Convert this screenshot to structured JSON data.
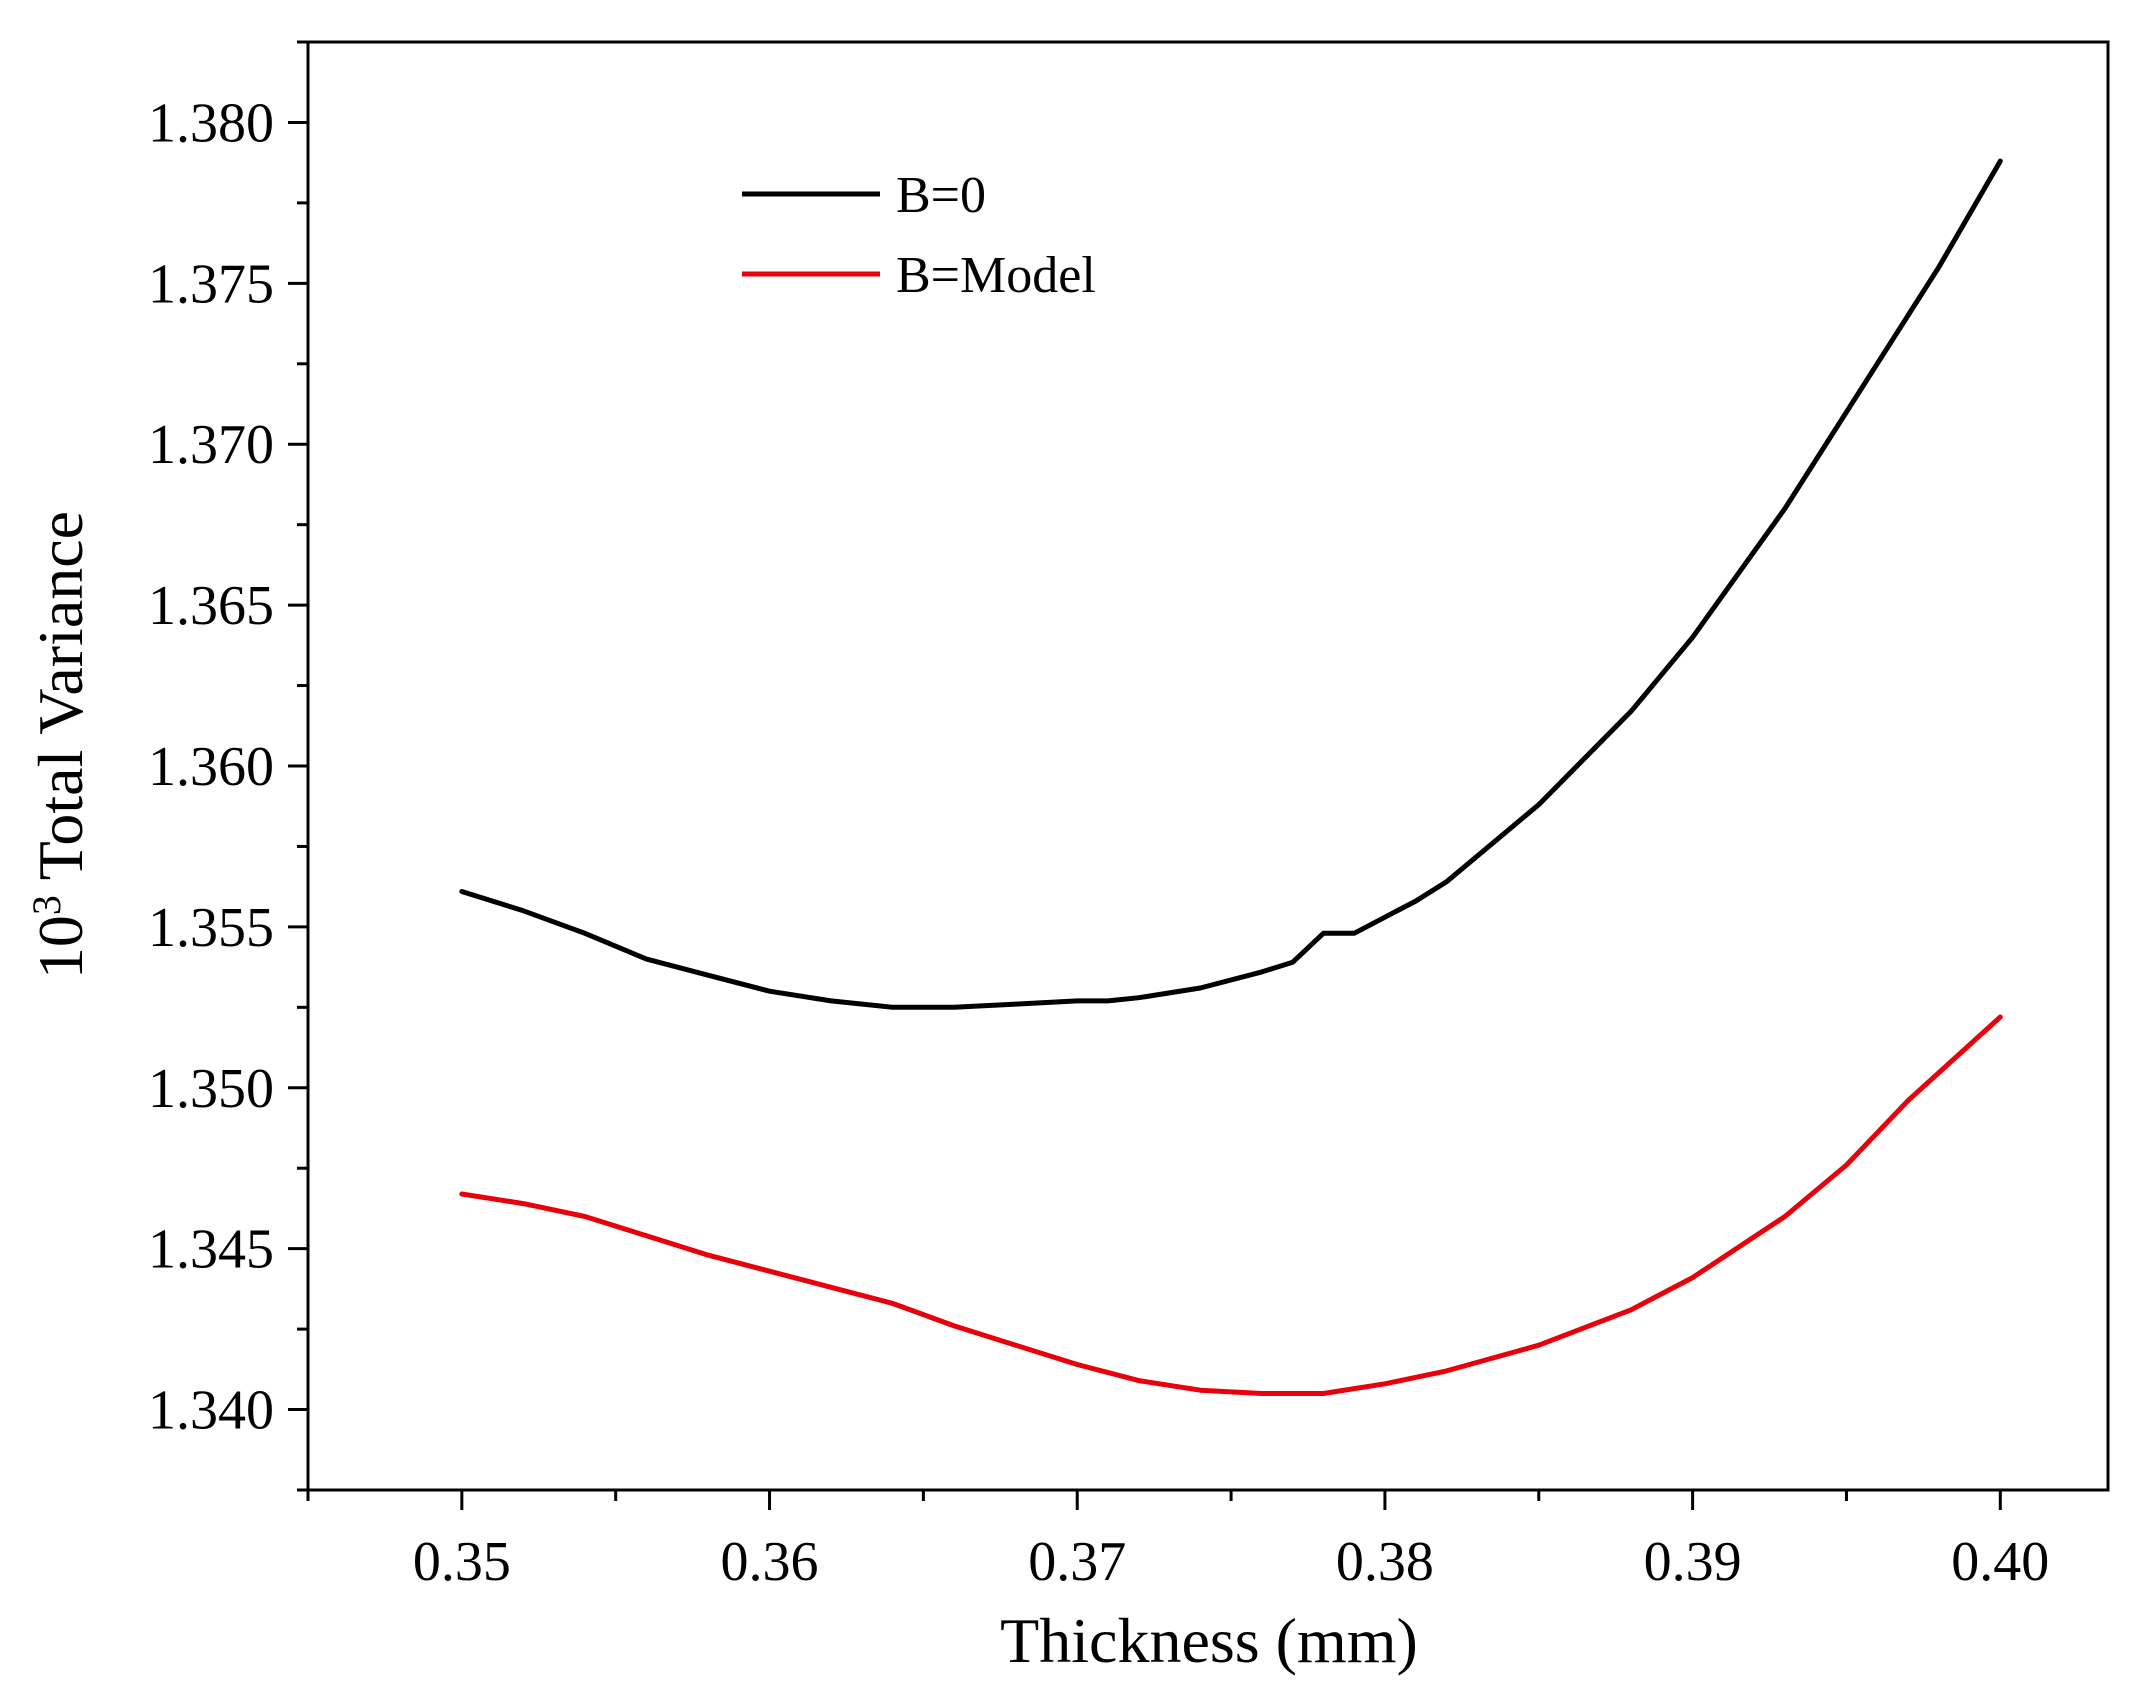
{
  "chart_data": {
    "type": "line",
    "xlabel": "Thickness (mm)",
    "ylabel_prefix": "10",
    "ylabel_exponent": "3",
    "ylabel_suffix": " Total Variance",
    "xlim": [
      0.345,
      0.4035
    ],
    "ylim": [
      1.3375,
      1.3825
    ],
    "x_ticks": [
      0.35,
      0.36,
      0.37,
      0.38,
      0.39,
      0.4
    ],
    "x_tick_labels": [
      "0.35",
      "0.36",
      "0.37",
      "0.38",
      "0.39",
      "0.40"
    ],
    "y_ticks": [
      1.34,
      1.345,
      1.35,
      1.355,
      1.36,
      1.365,
      1.37,
      1.375,
      1.38
    ],
    "y_tick_labels": [
      "1.340",
      "1.345",
      "1.350",
      "1.355",
      "1.360",
      "1.365",
      "1.370",
      "1.375",
      "1.380"
    ],
    "grid": false,
    "legend_position": "top-left",
    "series": [
      {
        "name": "B=0",
        "color": "#000000",
        "x": [
          0.35,
          0.352,
          0.354,
          0.356,
          0.358,
          0.36,
          0.362,
          0.364,
          0.366,
          0.368,
          0.37,
          0.371,
          0.372,
          0.374,
          0.376,
          0.377,
          0.378,
          0.379,
          0.38,
          0.381,
          0.382,
          0.385,
          0.388,
          0.39,
          0.393,
          0.396,
          0.398,
          0.4
        ],
        "y": [
          1.3561,
          1.3555,
          1.3548,
          1.354,
          1.3535,
          1.353,
          1.3527,
          1.3525,
          1.3525,
          1.3526,
          1.3527,
          1.3527,
          1.3528,
          1.3531,
          1.3536,
          1.3539,
          1.3548,
          1.3548,
          1.3553,
          1.3558,
          1.3564,
          1.3588,
          1.3617,
          1.364,
          1.368,
          1.3725,
          1.3755,
          1.3788
        ]
      },
      {
        "name": "B=Model",
        "color": "#e8000b",
        "x": [
          0.35,
          0.352,
          0.354,
          0.356,
          0.358,
          0.36,
          0.362,
          0.364,
          0.366,
          0.368,
          0.37,
          0.372,
          0.374,
          0.376,
          0.378,
          0.38,
          0.382,
          0.385,
          0.388,
          0.39,
          0.393,
          0.395,
          0.397,
          0.4
        ],
        "y": [
          1.3467,
          1.3464,
          1.346,
          1.3454,
          1.3448,
          1.3443,
          1.3438,
          1.3433,
          1.3426,
          1.342,
          1.3414,
          1.3409,
          1.3406,
          1.3405,
          1.3405,
          1.3408,
          1.3412,
          1.342,
          1.3431,
          1.3441,
          1.346,
          1.3476,
          1.3496,
          1.3522
        ]
      }
    ]
  }
}
